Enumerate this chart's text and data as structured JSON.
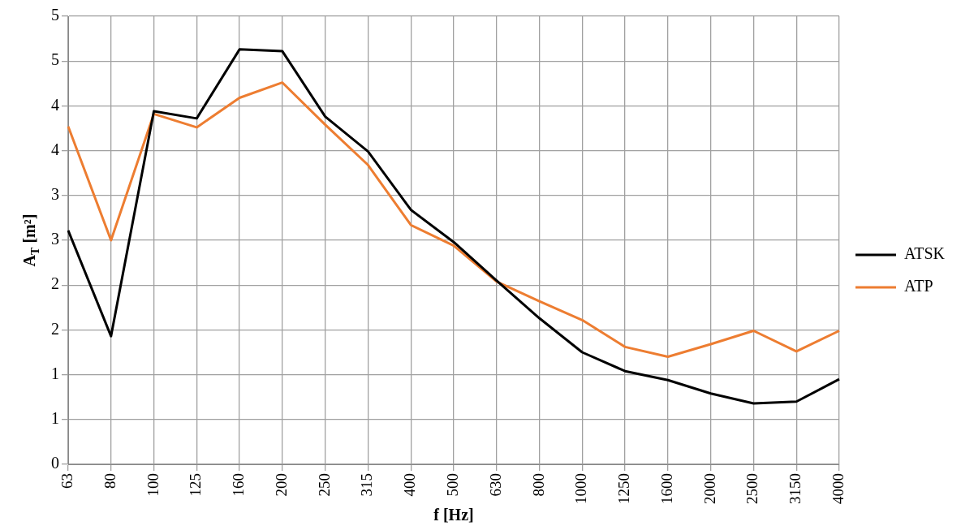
{
  "chart_data": {
    "type": "line",
    "xlabel": "f [Hz]",
    "ylabel": "A$_{T}$ [m²]",
    "categories": [
      "63",
      "80",
      "100",
      "125",
      "160",
      "200",
      "250",
      "315",
      "400",
      "500",
      "630",
      "800",
      "1000",
      "1250",
      "1600",
      "2000",
      "2500",
      "3150",
      "4000"
    ],
    "series": [
      {
        "name": "ATSK",
        "color": "#000000",
        "values": [
          2.61,
          1.43,
          3.94,
          3.86,
          4.63,
          4.61,
          3.88,
          3.49,
          2.84,
          2.48,
          2.05,
          1.63,
          1.25,
          1.04,
          0.94,
          0.79,
          0.68,
          0.7,
          0.95
        ]
      },
      {
        "name": "ATP",
        "color": "#ed7d31",
        "values": [
          3.77,
          2.5,
          3.91,
          3.76,
          4.09,
          4.26,
          3.79,
          3.34,
          2.67,
          2.44,
          2.04,
          1.82,
          1.61,
          1.31,
          1.2,
          1.34,
          1.49,
          1.26,
          1.49
        ]
      }
    ],
    "ylim": [
      0,
      5
    ],
    "yticks": [
      0,
      {
        "value": 0.5,
        "label": "1"
      },
      1,
      {
        "value": 1.5,
        "label": "2"
      },
      2,
      {
        "value": 2.5,
        "label": "3"
      },
      3,
      {
        "value": 3.5,
        "label": "4"
      },
      4,
      {
        "value": 4.5,
        "label": "5"
      },
      5
    ],
    "grid": true,
    "legend": "right",
    "marker": "none",
    "line_style": "solid"
  }
}
